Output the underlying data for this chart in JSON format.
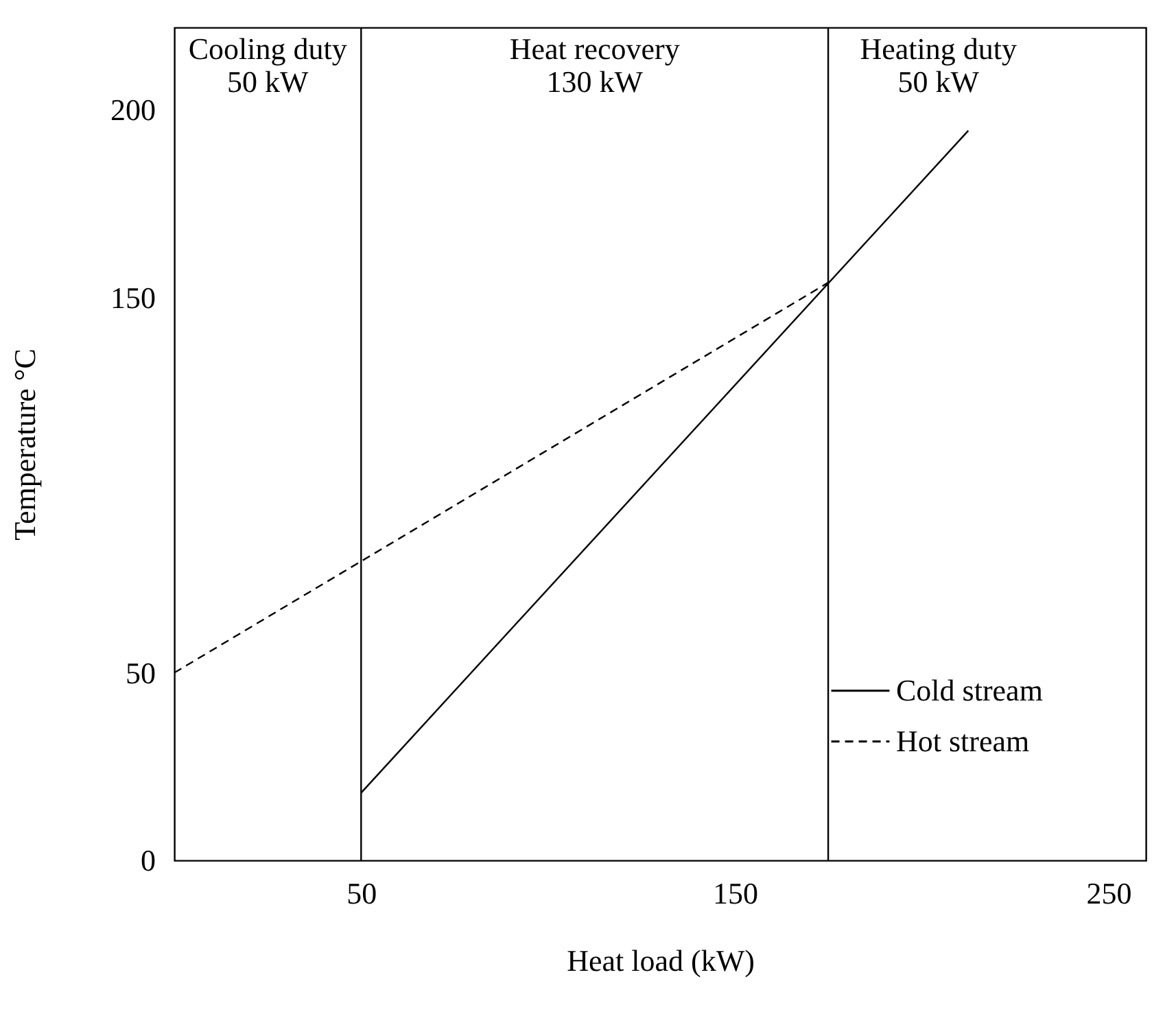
{
  "chart_data": {
    "type": "line",
    "xlabel": "Heat load (kW)",
    "ylabel": "Temperature °C",
    "xlim": [
      0,
      260
    ],
    "ylim": [
      0,
      222
    ],
    "xticks": [
      50,
      150,
      250
    ],
    "yticks": [
      0,
      50,
      150,
      200
    ],
    "grid": false,
    "legend": "right",
    "marker": "none",
    "series": [
      {
        "name": "Cold stream",
        "color": "#000000",
        "line_style": "solid",
        "x": [
          50,
          212.5
        ],
        "values": [
          18,
          194.5
        ]
      },
      {
        "name": "Hot stream",
        "color": "#000000",
        "line_style": "dashed",
        "x": [
          0,
          175
        ],
        "values": [
          50,
          154
        ]
      }
    ],
    "ref_lines": [
      {
        "axis": "x",
        "value": 50,
        "color": "#000000"
      },
      {
        "axis": "x",
        "value": 175,
        "color": "#000000"
      }
    ],
    "annotations": [
      "Cooling duty\n50 kW",
      "Heat recovery\n130 kW",
      "Heating duty\n50 kW"
    ]
  }
}
